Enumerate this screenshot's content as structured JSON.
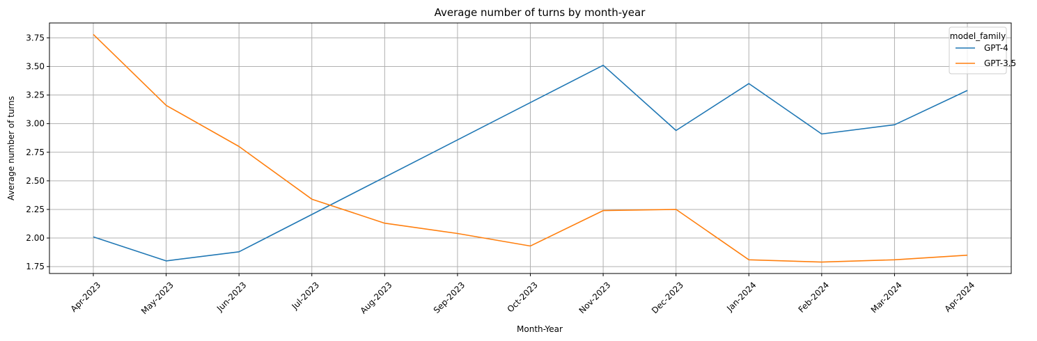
{
  "chart_data": {
    "type": "line",
    "title": "Average number of turns by month-year",
    "xlabel": "Month-Year",
    "ylabel": "Average number of turns",
    "categories": [
      "Apr-2023",
      "May-2023",
      "Jun-2023",
      "Jul-2023",
      "Aug-2023",
      "Sep-2023",
      "Oct-2023",
      "Nov-2023",
      "Dec-2023",
      "Jan-2024",
      "Feb-2024",
      "Mar-2024",
      "Apr-2024"
    ],
    "x_tick_rotation_deg": 45,
    "y_ticks": [
      "1.75",
      "2.00",
      "2.25",
      "2.50",
      "2.75",
      "3.00",
      "3.25",
      "3.50",
      "3.75"
    ],
    "ylim": [
      1.69,
      3.88
    ],
    "grid": true,
    "legend_title": "model_family",
    "legend_position": "upper-right",
    "series": [
      {
        "name": "GPT-4",
        "color": "#1f77b4",
        "points": [
          {
            "x": "Apr-2023",
            "y": 2.01
          },
          {
            "x": "May-2023",
            "y": 1.8
          },
          {
            "x": "Jun-2023",
            "y": 1.88
          },
          {
            "x": "Nov-2023",
            "y": 3.51
          },
          {
            "x": "Dec-2023",
            "y": 2.94
          },
          {
            "x": "Jan-2024",
            "y": 3.35
          },
          {
            "x": "Feb-2024",
            "y": 2.91
          },
          {
            "x": "Mar-2024",
            "y": 2.99
          },
          {
            "x": "Apr-2024",
            "y": 3.29
          }
        ]
      },
      {
        "name": "GPT-3.5",
        "color": "#ff7f0e",
        "points": [
          {
            "x": "Apr-2023",
            "y": 3.78
          },
          {
            "x": "May-2023",
            "y": 3.16
          },
          {
            "x": "Jun-2023",
            "y": 2.8
          },
          {
            "x": "Jul-2023",
            "y": 2.34
          },
          {
            "x": "Aug-2023",
            "y": 2.13
          },
          {
            "x": "Sep-2023",
            "y": 2.04
          },
          {
            "x": "Oct-2023",
            "y": 1.93
          },
          {
            "x": "Nov-2023",
            "y": 2.24
          },
          {
            "x": "Dec-2023",
            "y": 2.25
          },
          {
            "x": "Jan-2024",
            "y": 1.81
          },
          {
            "x": "Feb-2024",
            "y": 1.79
          },
          {
            "x": "Mar-2024",
            "y": 1.81
          },
          {
            "x": "Apr-2024",
            "y": 1.85
          }
        ]
      }
    ]
  }
}
